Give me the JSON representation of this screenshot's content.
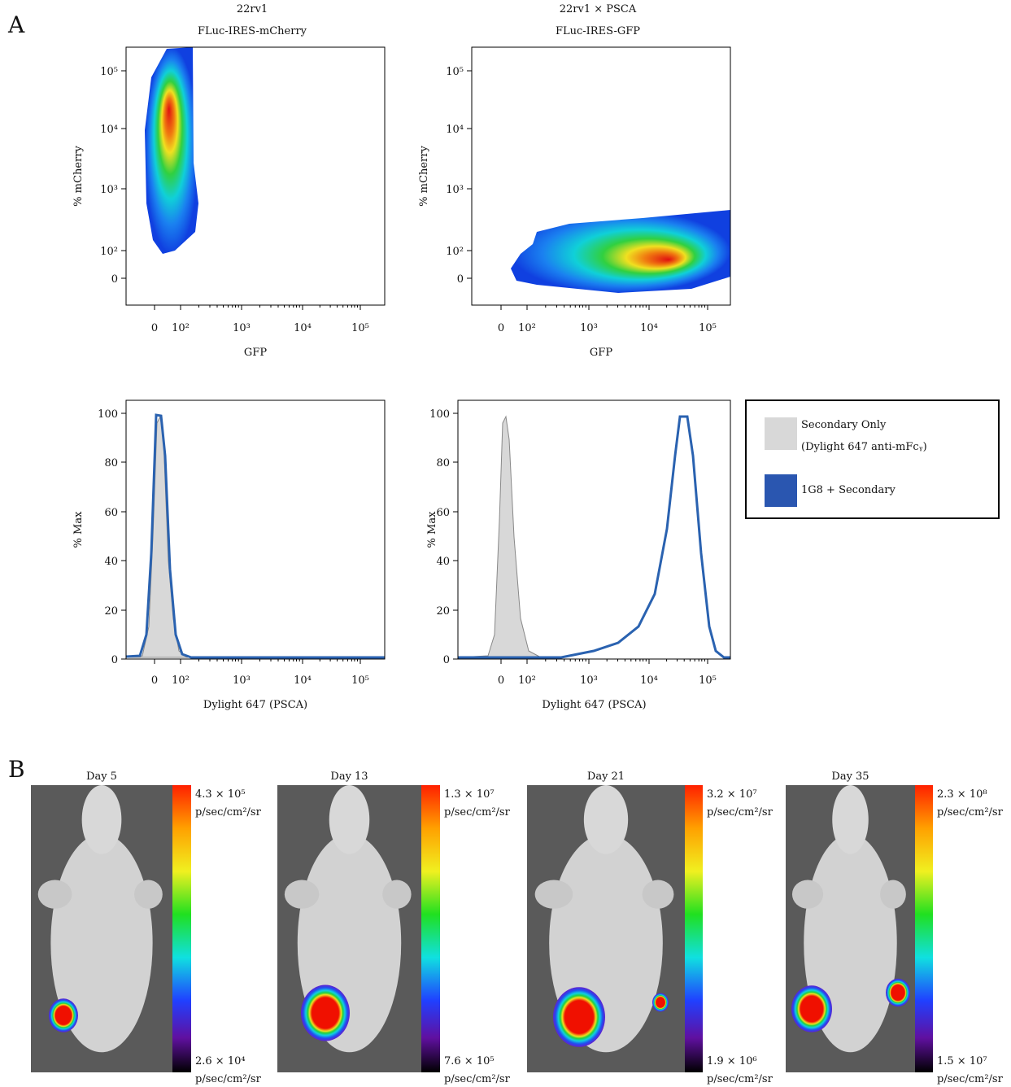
{
  "panel_a": {
    "label": "A",
    "plots": [
      {
        "title": [
          "22rv1",
          "FLuc-IRES-mCherry"
        ],
        "x_label": "GFP",
        "y_label": "% mCherry",
        "x_ticks": [
          "0",
          "10²",
          "10³",
          "10⁴",
          "10⁵"
        ],
        "y_ticks": [
          "10⁵",
          "10⁴",
          "10³",
          "10²",
          "0"
        ]
      },
      {
        "title": [
          "22rv1 × PSCA",
          "FLuc-IRES-GFP"
        ],
        "x_label": "GFP",
        "y_label": "% mCherry",
        "x_ticks": [
          "0",
          "10²",
          "10³",
          "10⁴",
          "10⁵"
        ],
        "y_ticks": [
          "10⁵",
          "10⁴",
          "10³",
          "10²",
          "0"
        ]
      },
      {
        "x_label": "Dylight 647 (PSCA)",
        "y_label": "% Max",
        "x_ticks": [
          "0",
          "10²",
          "10³",
          "10⁴",
          "10⁵"
        ],
        "y_ticks": [
          100,
          80,
          60,
          40,
          20,
          0
        ]
      },
      {
        "x_label": "Dylight 647 (PSCA)",
        "y_label": "% Max",
        "x_ticks": [
          "0",
          "10²",
          "10³",
          "10⁴",
          "10⁵"
        ],
        "y_ticks": [
          100,
          80,
          60,
          40,
          20,
          0
        ]
      }
    ],
    "legend": [
      {
        "label": "Secondary Only",
        "sublabel": "(Dylight 647 anti-mFcᵧ)",
        "color": "#d8d8d8"
      },
      {
        "label": "1G8 + Secondary",
        "color": "#2a56b0"
      }
    ]
  },
  "panel_b": {
    "label": "B",
    "unit": "p/sec/cm²/sr",
    "images": [
      {
        "day": "Day 5",
        "max": "4.3 × 10⁵",
        "min": "2.6 × 10⁴"
      },
      {
        "day": "Day 13",
        "max": "1.3 × 10⁷",
        "min": "7.6 × 10⁵"
      },
      {
        "day": "Day 21",
        "max": "3.2 × 10⁷",
        "min": "1.9 × 10⁶"
      },
      {
        "day": "Day 35",
        "max": "2.3 × 10⁸",
        "min": "1.5 × 10⁷"
      }
    ]
  }
}
